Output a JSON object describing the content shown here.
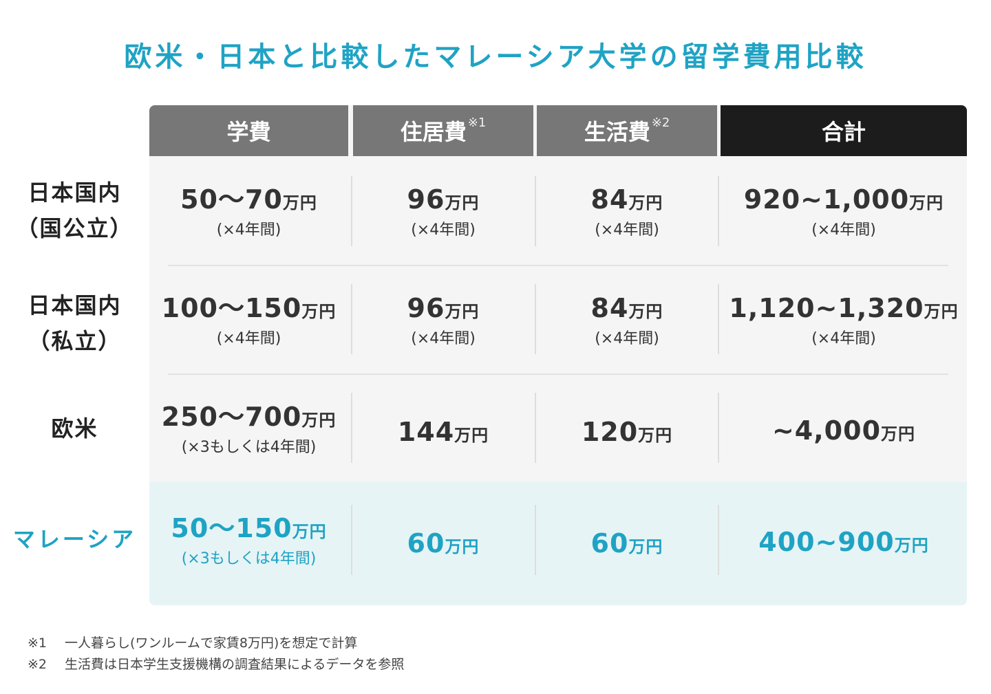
{
  "title": "欧米・日本と比較したマレーシア大学の留学費用比較",
  "headers": {
    "tuition": "学費",
    "housing": "住居費",
    "housing_sup": "※1",
    "living": "生活費",
    "living_sup": "※2",
    "total": "合計"
  },
  "rows": [
    {
      "label_1": "日本国内",
      "label_2": "（国公立）",
      "tuition": "50〜70",
      "tuition_unit": "万円",
      "tuition_note": "(×4年間)",
      "housing": "96",
      "housing_unit": "万円",
      "housing_note": "(×4年間)",
      "living": "84",
      "living_unit": "万円",
      "living_note": "(×4年間)",
      "total": "920~1,000",
      "total_unit": "万円",
      "total_note": "(×4年間)"
    },
    {
      "label_1": "日本国内",
      "label_2": "（私立）",
      "tuition": "100〜150",
      "tuition_unit": "万円",
      "tuition_note": "(×4年間)",
      "housing": "96",
      "housing_unit": "万円",
      "housing_note": "(×4年間)",
      "living": "84",
      "living_unit": "万円",
      "living_note": "(×4年間)",
      "total": "1,120~1,320",
      "total_unit": "万円",
      "total_note": "(×4年間)"
    },
    {
      "label_1": "欧米",
      "tuition": "250〜700",
      "tuition_unit": "万円",
      "tuition_note": "(×3もしくは4年間)",
      "housing": "144",
      "housing_unit": "万円",
      "living": "120",
      "living_unit": "万円",
      "total": "~4,000",
      "total_unit": "万円"
    },
    {
      "label_1": "マレーシア",
      "tuition": "50〜150",
      "tuition_unit": "万円",
      "tuition_note": "(×3もしくは4年間)",
      "housing": "60",
      "housing_unit": "万円",
      "living": "60",
      "living_unit": "万円",
      "total": "400~900",
      "total_unit": "万円"
    }
  ],
  "footnotes": [
    {
      "mark": "※1",
      "text": "一人暮らし(ワンルームで家賃8万円)を想定で計算"
    },
    {
      "mark": "※2",
      "text": "生活費は日本学生支援機構の調査結果によるデータを参照"
    }
  ],
  "colors": {
    "accent": "#1fa3c4",
    "header_gray": "#777777",
    "header_dark": "#1c1c1c",
    "highlight_row": "#e6f4f6"
  }
}
